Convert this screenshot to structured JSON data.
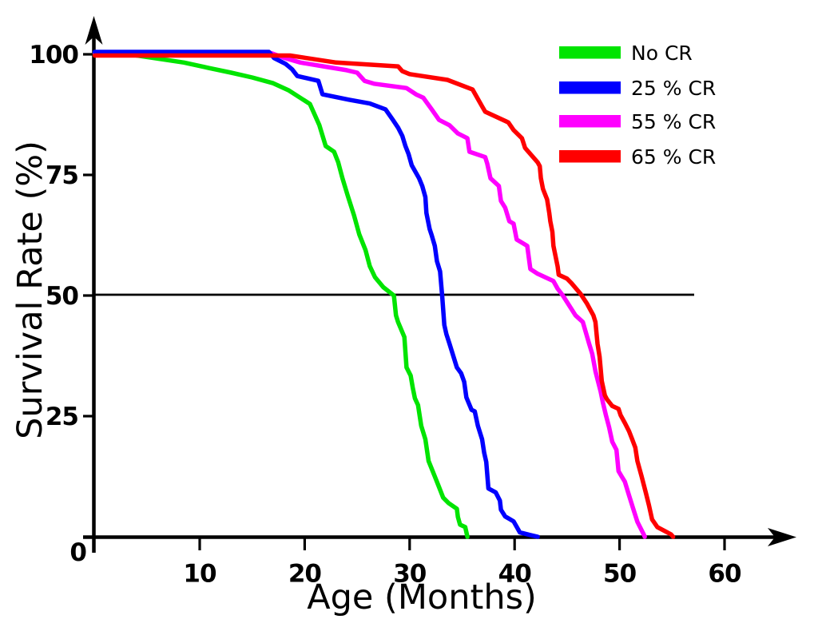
{
  "figure": {
    "background_color": "#ffffff",
    "axis_color": "#000000",
    "reference_line_color": "#000000"
  },
  "chart_data": {
    "type": "line",
    "title": "",
    "xlabel": "Age (Months)",
    "ylabel": "Survival Rate (%)",
    "xlim": [
      0,
      65
    ],
    "ylim": [
      0,
      105
    ],
    "grid": false,
    "legend_position": "top-right",
    "x_ticks": [
      10,
      20,
      30,
      40,
      50,
      60
    ],
    "y_ticks": [
      100,
      75,
      50,
      25
    ],
    "origin_label": "0",
    "reference_line": {
      "axis": "y",
      "value": 50
    },
    "series": [
      {
        "name": "No CR",
        "color": "#00e400",
        "median_months": 28.5,
        "points": [
          [
            0,
            100
          ],
          [
            3,
            100
          ],
          [
            5.7,
            99.2
          ],
          [
            8.5,
            98.3
          ],
          [
            10.8,
            97.2
          ],
          [
            13,
            96.2
          ],
          [
            15,
            95.2
          ],
          [
            17,
            94
          ],
          [
            18.5,
            92.5
          ],
          [
            20.5,
            89.7
          ],
          [
            21.4,
            85.3
          ],
          [
            22,
            81
          ],
          [
            22.8,
            79.8
          ],
          [
            23.2,
            77.6
          ],
          [
            23.6,
            74.3
          ],
          [
            24.1,
            70.7
          ],
          [
            24.7,
            66.6
          ],
          [
            25.2,
            62.7
          ],
          [
            25.8,
            59.4
          ],
          [
            26.2,
            56.1
          ],
          [
            26.7,
            53.8
          ],
          [
            27.5,
            51.7
          ],
          [
            28.5,
            50
          ],
          [
            28.7,
            45.9
          ],
          [
            28.9,
            44.5
          ],
          [
            29.5,
            41.4
          ],
          [
            29.7,
            35.1
          ],
          [
            30.1,
            33.4
          ],
          [
            30.3,
            30.9
          ],
          [
            30.5,
            28.7
          ],
          [
            30.8,
            27.3
          ],
          [
            31.1,
            23
          ],
          [
            31.5,
            20.2
          ],
          [
            31.8,
            15.7
          ],
          [
            32.1,
            14.1
          ],
          [
            32.4,
            12.5
          ],
          [
            32.8,
            10.3
          ],
          [
            33.2,
            8.1
          ],
          [
            33.7,
            7
          ],
          [
            34.5,
            5.8
          ],
          [
            34.6,
            4.1
          ],
          [
            34.8,
            2.5
          ],
          [
            35.3,
            2
          ],
          [
            35.5,
            0
          ]
        ]
      },
      {
        "name": "25 % CR",
        "color": "#0000ff",
        "median_months": 33,
        "points": [
          [
            0,
            100
          ],
          [
            16.6,
            100
          ],
          [
            17.1,
            99.2
          ],
          [
            18.2,
            98
          ],
          [
            18.8,
            96.9
          ],
          [
            19.3,
            95.5
          ],
          [
            21.3,
            94.5
          ],
          [
            21.7,
            91.7
          ],
          [
            24.2,
            90.6
          ],
          [
            26.2,
            89.8
          ],
          [
            27.7,
            88.6
          ],
          [
            28.4,
            86.4
          ],
          [
            28.9,
            84.8
          ],
          [
            29.3,
            83.1
          ],
          [
            29.6,
            81
          ],
          [
            29.9,
            79.3
          ],
          [
            30.2,
            77
          ],
          [
            30.9,
            74.3
          ],
          [
            31.2,
            72.7
          ],
          [
            31.5,
            70.4
          ],
          [
            31.6,
            67.1
          ],
          [
            31.9,
            63.8
          ],
          [
            32.1,
            62.5
          ],
          [
            32.4,
            60.3
          ],
          [
            32.6,
            57.1
          ],
          [
            32.9,
            55
          ],
          [
            33.1,
            50
          ],
          [
            33.3,
            43.9
          ],
          [
            33.5,
            42
          ],
          [
            33.8,
            40
          ],
          [
            34.5,
            35.1
          ],
          [
            34.9,
            33.9
          ],
          [
            35.2,
            32.1
          ],
          [
            35.4,
            28.9
          ],
          [
            35.9,
            26.3
          ],
          [
            36.2,
            26
          ],
          [
            36.5,
            23
          ],
          [
            36.9,
            20.2
          ],
          [
            37.1,
            17.4
          ],
          [
            37.3,
            15.5
          ],
          [
            37.5,
            10
          ],
          [
            38.2,
            9.2
          ],
          [
            38.6,
            7.5
          ],
          [
            38.7,
            5.6
          ],
          [
            39.1,
            4.2
          ],
          [
            39.9,
            3.2
          ],
          [
            40.5,
            0.9
          ],
          [
            41.4,
            0.4
          ],
          [
            42.2,
            0
          ]
        ]
      },
      {
        "name": "55 % CR",
        "color": "#ff00ff",
        "median_months": 44.6,
        "points": [
          [
            0,
            100
          ],
          [
            16.8,
            100
          ],
          [
            18,
            99.3
          ],
          [
            19.6,
            98.3
          ],
          [
            21.8,
            97.5
          ],
          [
            24,
            96.7
          ],
          [
            25,
            96.2
          ],
          [
            25.7,
            94.5
          ],
          [
            26.6,
            93.9
          ],
          [
            29.7,
            93
          ],
          [
            30.6,
            91.7
          ],
          [
            31.3,
            91
          ],
          [
            32.1,
            88.6
          ],
          [
            32.8,
            86.4
          ],
          [
            33.8,
            85.3
          ],
          [
            34.6,
            83.6
          ],
          [
            35.5,
            82.6
          ],
          [
            35.7,
            79.8
          ],
          [
            37.2,
            78.7
          ],
          [
            37.4,
            77.3
          ],
          [
            37.7,
            74.3
          ],
          [
            38.5,
            72.7
          ],
          [
            38.7,
            69.6
          ],
          [
            39.1,
            68.2
          ],
          [
            39.5,
            65.4
          ],
          [
            39.9,
            64.9
          ],
          [
            40.2,
            61.6
          ],
          [
            41.2,
            60.3
          ],
          [
            41.5,
            55.5
          ],
          [
            42.2,
            54.5
          ],
          [
            43.7,
            53
          ],
          [
            44.1,
            51.4
          ],
          [
            44.6,
            50
          ],
          [
            45.8,
            45.9
          ],
          [
            46.5,
            44.5
          ],
          [
            47.1,
            40
          ],
          [
            47.4,
            37.9
          ],
          [
            47.7,
            34.3
          ],
          [
            47.9,
            32.6
          ],
          [
            48.2,
            30.1
          ],
          [
            48.4,
            27.9
          ],
          [
            48.7,
            25.2
          ],
          [
            49,
            22.7
          ],
          [
            49.3,
            19.7
          ],
          [
            49.7,
            18
          ],
          [
            49.9,
            13.6
          ],
          [
            50.2,
            12.5
          ],
          [
            50.5,
            11.4
          ],
          [
            50.9,
            8.6
          ],
          [
            51.3,
            5.8
          ],
          [
            51.7,
            3.1
          ],
          [
            52.3,
            0.5
          ],
          [
            52.4,
            0
          ]
        ]
      },
      {
        "name": "65 % CR",
        "color": "#ff0000",
        "median_months": 46.4,
        "points": [
          [
            0,
            100
          ],
          [
            18.6,
            100
          ],
          [
            23,
            98.3
          ],
          [
            28.9,
            97.5
          ],
          [
            29.3,
            96.5
          ],
          [
            30,
            95.9
          ],
          [
            33.6,
            94.7
          ],
          [
            36,
            92.7
          ],
          [
            36.9,
            89.2
          ],
          [
            37.2,
            88.1
          ],
          [
            39.4,
            85.9
          ],
          [
            39.9,
            84.3
          ],
          [
            40.7,
            82.6
          ],
          [
            41,
            80.6
          ],
          [
            42.2,
            77.6
          ],
          [
            42.4,
            76.8
          ],
          [
            42.5,
            74.3
          ],
          [
            42.7,
            72.1
          ],
          [
            43.1,
            69.9
          ],
          [
            43.3,
            67.1
          ],
          [
            43.4,
            65.4
          ],
          [
            43.6,
            63.2
          ],
          [
            43.7,
            60.3
          ],
          [
            44.1,
            56
          ],
          [
            44.2,
            54.3
          ],
          [
            45,
            53.5
          ],
          [
            45.4,
            52.6
          ],
          [
            46.3,
            50.3
          ],
          [
            46.9,
            48.3
          ],
          [
            47.5,
            45.9
          ],
          [
            47.7,
            44.5
          ],
          [
            47.9,
            40
          ],
          [
            48.1,
            37.3
          ],
          [
            48.3,
            32.3
          ],
          [
            48.6,
            29.3
          ],
          [
            48.8,
            28.5
          ],
          [
            49.3,
            27.1
          ],
          [
            49.9,
            26.5
          ],
          [
            50.1,
            25.2
          ],
          [
            50.5,
            23.6
          ],
          [
            50.9,
            21.9
          ],
          [
            51.2,
            20.2
          ],
          [
            51.5,
            18.5
          ],
          [
            51.7,
            15.7
          ],
          [
            52.1,
            12.5
          ],
          [
            52.5,
            9.1
          ],
          [
            52.8,
            6.5
          ],
          [
            53.1,
            3.6
          ],
          [
            53.6,
            2
          ],
          [
            54.3,
            1.2
          ],
          [
            54.9,
            0.5
          ],
          [
            55.1,
            0
          ]
        ]
      }
    ]
  }
}
